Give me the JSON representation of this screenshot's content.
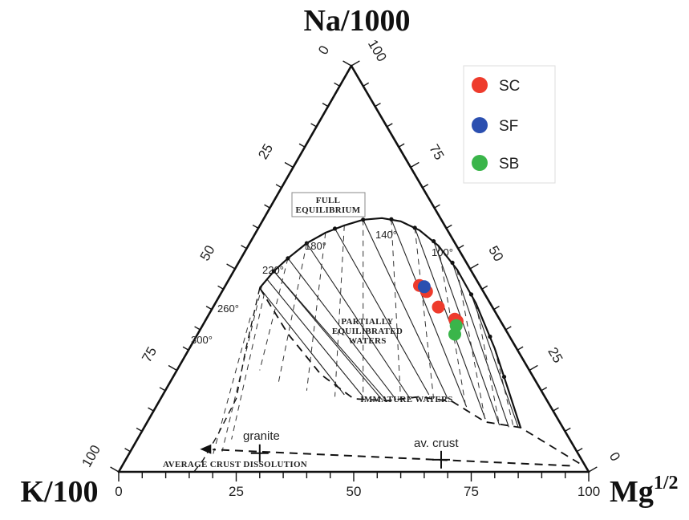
{
  "chart_data": {
    "type": "scatter",
    "diagram": "ternary",
    "vertices": {
      "top": "Na/1000",
      "left": "K/100",
      "right_base": "Mg",
      "right_sup": "1/2"
    },
    "bottom_ticks": [
      "0",
      "25",
      "50",
      "75",
      "100"
    ],
    "left_ticks": [
      "0",
      "25",
      "50",
      "75",
      "100"
    ],
    "right_ticks": [
      "100",
      "75",
      "50",
      "25",
      "0"
    ],
    "temperature_labels": [
      "140°",
      "100°",
      "180°",
      "220°",
      "260°",
      "300°"
    ],
    "regions": {
      "full": [
        "FULL",
        "EQUILIBRIUM"
      ],
      "partial": [
        "PARTIALLY",
        "EQUILIBRATED",
        "WATERS"
      ],
      "immature": "IMMATURE WATERS",
      "dissolution": "AVERAGE CRUST DISSOLUTION"
    },
    "annotations": {
      "granite": "granite",
      "crust": "av. crust"
    },
    "legend_position": "top-right",
    "series": [
      {
        "name": "SC",
        "color": "#ee3b2c",
        "points": [
          [
            64.0,
            45.9
          ],
          [
            65.5,
            44.4
          ],
          [
            68.0,
            40.6
          ],
          [
            71.5,
            37.6
          ],
          [
            72.0,
            37.1
          ]
        ]
      },
      {
        "name": "SF",
        "color": "#2b4fb0",
        "points": [
          [
            65.0,
            45.6
          ]
        ]
      },
      {
        "name": "SB",
        "color": "#3ab54a",
        "points": [
          [
            71.8,
            36.0
          ],
          [
            71.5,
            33.9
          ]
        ]
      }
    ]
  }
}
